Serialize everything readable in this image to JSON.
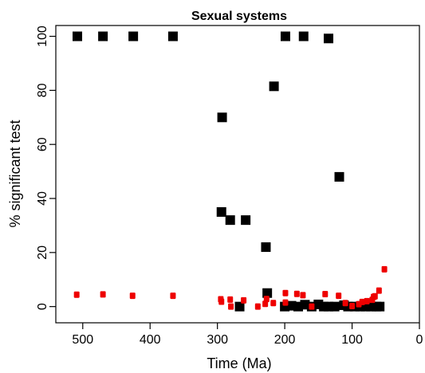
{
  "chart_data": {
    "type": "scatter",
    "title": "Sexual systems",
    "xlabel": "Time (Ma)",
    "ylabel": "% significant test",
    "xlim": [
      540,
      0
    ],
    "ylim": [
      -6,
      104
    ],
    "x_reversed": true,
    "x_ticks": [
      500,
      400,
      300,
      200,
      100,
      0
    ],
    "x_tick_labels": [
      "500",
      "400",
      "300",
      "200",
      "100",
      "0"
    ],
    "y_ticks": [
      0,
      20,
      40,
      60,
      80,
      100
    ],
    "y_tick_labels": [
      "0",
      "20",
      "40",
      "60",
      "80",
      "100"
    ],
    "grid": false,
    "legend": "none",
    "series": [
      {
        "color": "#000000",
        "marker": "square-large",
        "points": [
          [
            508,
            100
          ],
          [
            470,
            100
          ],
          [
            425,
            100
          ],
          [
            366,
            100
          ],
          [
            293,
            70
          ],
          [
            294,
            35
          ],
          [
            281,
            32
          ],
          [
            258,
            32
          ],
          [
            267,
            0
          ],
          [
            228,
            22
          ],
          [
            226,
            5
          ],
          [
            216,
            81.5
          ],
          [
            199,
            100
          ],
          [
            172,
            100
          ],
          [
            135,
            99.2
          ],
          [
            119,
            48
          ],
          [
            200,
            0
          ],
          [
            190,
            0.3
          ],
          [
            180,
            0
          ],
          [
            170,
            0.7
          ],
          [
            160,
            0
          ],
          [
            150,
            0.8
          ],
          [
            142,
            0
          ],
          [
            135,
            0
          ],
          [
            126,
            0
          ],
          [
            112,
            0.5
          ],
          [
            106,
            0
          ],
          [
            96,
            0
          ],
          [
            88,
            0
          ],
          [
            80,
            0
          ],
          [
            72,
            0
          ],
          [
            64,
            0
          ],
          [
            59,
            0
          ]
        ]
      },
      {
        "color": "#ee0000",
        "marker": "square-small",
        "points": [
          [
            509,
            4.4
          ],
          [
            470,
            4.5
          ],
          [
            426,
            4.0
          ],
          [
            366,
            4.0
          ],
          [
            295,
            2.7
          ],
          [
            294,
            1.8
          ],
          [
            281,
            2.6
          ],
          [
            280,
            0
          ],
          [
            261,
            2.3
          ],
          [
            240,
            0
          ],
          [
            229,
            1.0
          ],
          [
            227,
            2.8
          ],
          [
            217,
            1.3
          ],
          [
            199,
            5.0
          ],
          [
            199,
            1.5
          ],
          [
            182,
            4.7
          ],
          [
            173,
            4.2
          ],
          [
            160,
            0
          ],
          [
            140,
            4.6
          ],
          [
            120,
            4.0
          ],
          [
            110,
            1.3
          ],
          [
            100,
            0.2
          ],
          [
            90,
            0.9
          ],
          [
            85,
            1.7
          ],
          [
            78,
            2.0
          ],
          [
            70,
            2.5
          ],
          [
            68,
            3.6
          ],
          [
            66,
            3.8
          ],
          [
            60,
            5.9
          ],
          [
            52,
            13.8
          ]
        ]
      }
    ]
  }
}
